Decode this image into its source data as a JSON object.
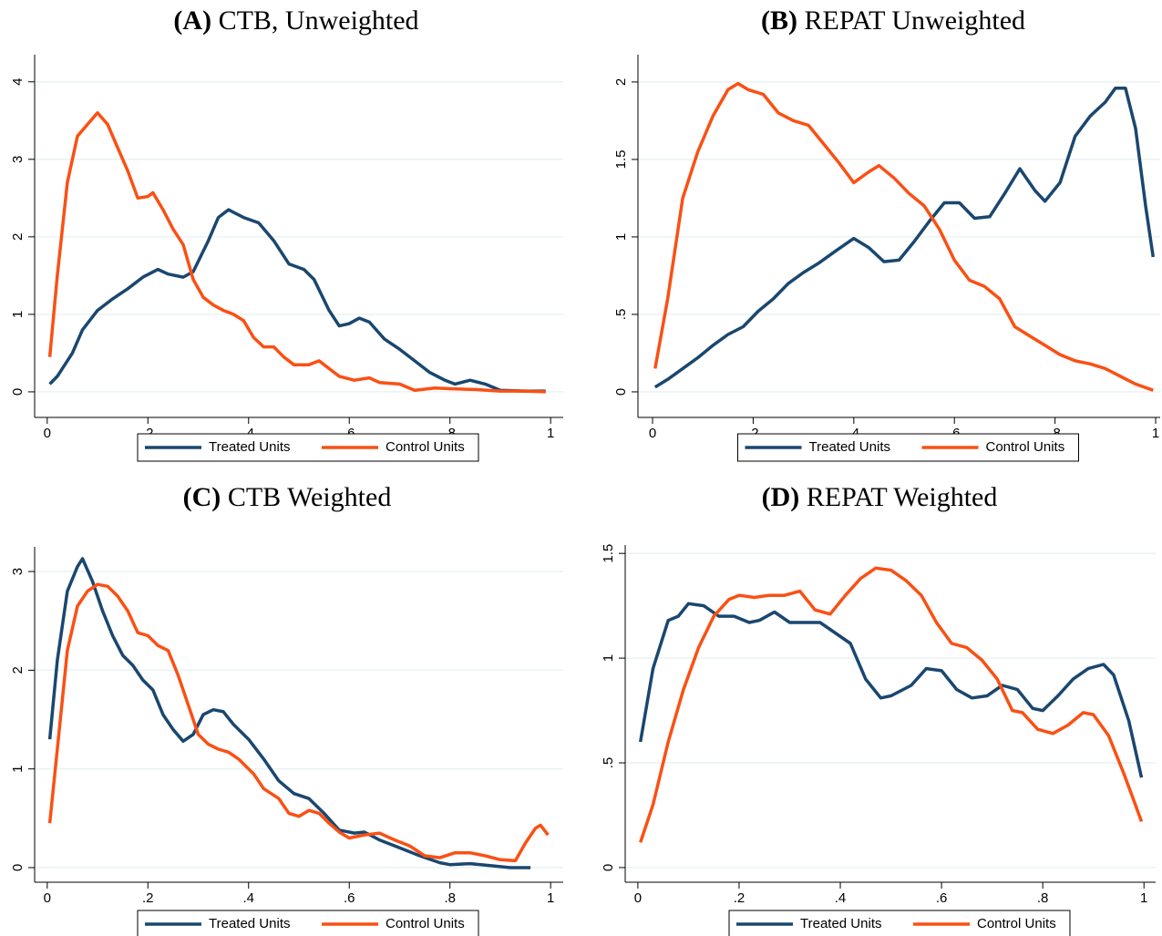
{
  "chart_data": [
    {
      "type": "line",
      "panel": "(A)",
      "title": "CTB, Unweighted",
      "grid": true,
      "legend": "bottom",
      "xlim": [
        -0.025,
        1.025
      ],
      "ylim": [
        -0.33,
        4.35
      ],
      "xticks": [
        0,
        {
          "value": 0.2,
          "label": ".2"
        },
        {
          "value": 0.4,
          "label": ".4"
        },
        {
          "value": 0.6,
          "label": ".6"
        },
        {
          "value": 0.8,
          "label": ".8"
        },
        1
      ],
      "yticks": [
        0,
        1,
        2,
        3,
        4
      ],
      "series": [
        {
          "name": "Treated Units",
          "color": "#1a476f",
          "x": [
            0.005,
            0.02,
            0.05,
            0.07,
            0.1,
            0.13,
            0.16,
            0.19,
            0.22,
            0.24,
            0.27,
            0.29,
            0.32,
            0.34,
            0.36,
            0.39,
            0.42,
            0.45,
            0.48,
            0.51,
            0.53,
            0.56,
            0.58,
            0.6,
            0.62,
            0.64,
            0.67,
            0.7,
            0.73,
            0.76,
            0.79,
            0.81,
            0.84,
            0.87,
            0.9,
            0.95,
            0.99
          ],
          "values": [
            0.1,
            0.2,
            0.5,
            0.8,
            1.05,
            1.2,
            1.33,
            1.48,
            1.58,
            1.52,
            1.48,
            1.55,
            1.95,
            2.25,
            2.35,
            2.25,
            2.18,
            1.95,
            1.65,
            1.58,
            1.45,
            1.05,
            0.85,
            0.88,
            0.95,
            0.9,
            0.68,
            0.55,
            0.4,
            0.25,
            0.15,
            0.1,
            0.15,
            0.1,
            0.02,
            0.01,
            0.01
          ]
        },
        {
          "name": "Control Units",
          "color": "#fa5014",
          "x": [
            0.005,
            0.02,
            0.04,
            0.06,
            0.08,
            0.1,
            0.12,
            0.14,
            0.16,
            0.18,
            0.2,
            0.21,
            0.23,
            0.25,
            0.27,
            0.29,
            0.31,
            0.33,
            0.35,
            0.37,
            0.39,
            0.41,
            0.43,
            0.45,
            0.47,
            0.49,
            0.52,
            0.54,
            0.56,
            0.58,
            0.61,
            0.64,
            0.66,
            0.7,
            0.73,
            0.77,
            0.8,
            0.85,
            0.9,
            0.95,
            0.99
          ],
          "values": [
            0.45,
            1.5,
            2.7,
            3.3,
            3.45,
            3.6,
            3.45,
            3.15,
            2.85,
            2.5,
            2.52,
            2.57,
            2.35,
            2.1,
            1.9,
            1.45,
            1.22,
            1.12,
            1.05,
            1.0,
            0.92,
            0.7,
            0.58,
            0.58,
            0.45,
            0.35,
            0.35,
            0.4,
            0.3,
            0.2,
            0.15,
            0.18,
            0.12,
            0.1,
            0.02,
            0.05,
            0.04,
            0.03,
            0.01,
            0.01,
            0.0
          ]
        }
      ]
    },
    {
      "type": "line",
      "panel": "(B)",
      "title": "REPAT Unweighted",
      "grid": true,
      "legend": "bottom",
      "xlim": [
        -0.029,
        1.009
      ],
      "ylim": [
        -0.165,
        2.176
      ],
      "xticks": [
        0,
        {
          "value": 0.2,
          "label": ".2"
        },
        {
          "value": 0.4,
          "label": ".4"
        },
        {
          "value": 0.6,
          "label": ".6"
        },
        {
          "value": 0.8,
          "label": ".8"
        },
        1
      ],
      "yticks": [
        0,
        {
          "value": 0.5,
          "label": ".5"
        },
        1,
        1.5,
        2
      ],
      "series": [
        {
          "name": "Treated Units",
          "color": "#1a476f",
          "x": [
            0.005,
            0.03,
            0.06,
            0.09,
            0.12,
            0.15,
            0.18,
            0.21,
            0.24,
            0.27,
            0.3,
            0.33,
            0.36,
            0.4,
            0.43,
            0.46,
            0.49,
            0.52,
            0.55,
            0.58,
            0.61,
            0.64,
            0.67,
            0.7,
            0.73,
            0.76,
            0.78,
            0.81,
            0.84,
            0.87,
            0.9,
            0.92,
            0.94,
            0.96,
            0.98,
            0.995
          ],
          "values": [
            0.03,
            0.08,
            0.15,
            0.22,
            0.3,
            0.37,
            0.42,
            0.52,
            0.6,
            0.7,
            0.77,
            0.83,
            0.9,
            0.99,
            0.93,
            0.84,
            0.85,
            0.97,
            1.1,
            1.22,
            1.22,
            1.12,
            1.13,
            1.28,
            1.44,
            1.3,
            1.23,
            1.35,
            1.65,
            1.78,
            1.87,
            1.96,
            1.96,
            1.7,
            1.2,
            0.87
          ]
        },
        {
          "name": "Control Units",
          "color": "#fa5014",
          "x": [
            0.005,
            0.03,
            0.06,
            0.09,
            0.12,
            0.15,
            0.17,
            0.19,
            0.22,
            0.25,
            0.28,
            0.31,
            0.34,
            0.37,
            0.4,
            0.43,
            0.45,
            0.48,
            0.51,
            0.54,
            0.57,
            0.6,
            0.63,
            0.66,
            0.69,
            0.72,
            0.75,
            0.78,
            0.81,
            0.84,
            0.87,
            0.9,
            0.93,
            0.96,
            0.995
          ],
          "values": [
            0.15,
            0.6,
            1.25,
            1.55,
            1.78,
            1.95,
            1.99,
            1.95,
            1.92,
            1.8,
            1.75,
            1.72,
            1.6,
            1.48,
            1.35,
            1.42,
            1.46,
            1.38,
            1.28,
            1.2,
            1.05,
            0.85,
            0.72,
            0.68,
            0.6,
            0.42,
            0.36,
            0.3,
            0.24,
            0.2,
            0.18,
            0.15,
            0.1,
            0.05,
            0.01
          ]
        }
      ]
    },
    {
      "type": "line",
      "panel": "(C)",
      "title": "CTB Weighted",
      "grid": true,
      "legend": "bottom",
      "xlim": [
        -0.025,
        1.025
      ],
      "ylim": [
        -0.148,
        3.25
      ],
      "xticks": [
        0,
        {
          "value": 0.2,
          "label": ".2"
        },
        {
          "value": 0.4,
          "label": ".4"
        },
        {
          "value": 0.6,
          "label": ".6"
        },
        {
          "value": 0.8,
          "label": ".8"
        },
        1
      ],
      "yticks": [
        0,
        1,
        2,
        3
      ],
      "series": [
        {
          "name": "Treated Units",
          "color": "#1a476f",
          "x": [
            0.005,
            0.02,
            0.04,
            0.06,
            0.07,
            0.09,
            0.11,
            0.13,
            0.15,
            0.17,
            0.19,
            0.21,
            0.23,
            0.25,
            0.27,
            0.29,
            0.31,
            0.33,
            0.35,
            0.37,
            0.4,
            0.43,
            0.46,
            0.49,
            0.52,
            0.55,
            0.58,
            0.61,
            0.63,
            0.66,
            0.7,
            0.74,
            0.78,
            0.8,
            0.84,
            0.88,
            0.92,
            0.96
          ],
          "values": [
            1.3,
            2.1,
            2.8,
            3.05,
            3.13,
            2.9,
            2.6,
            2.35,
            2.15,
            2.05,
            1.9,
            1.8,
            1.55,
            1.4,
            1.28,
            1.35,
            1.55,
            1.6,
            1.58,
            1.45,
            1.3,
            1.1,
            0.88,
            0.75,
            0.7,
            0.55,
            0.38,
            0.35,
            0.36,
            0.28,
            0.2,
            0.12,
            0.05,
            0.03,
            0.04,
            0.02,
            0.0,
            0.0
          ]
        },
        {
          "name": "Control Units",
          "color": "#fa5014",
          "x": [
            0.005,
            0.02,
            0.04,
            0.06,
            0.08,
            0.1,
            0.12,
            0.14,
            0.16,
            0.18,
            0.2,
            0.22,
            0.24,
            0.26,
            0.28,
            0.3,
            0.32,
            0.34,
            0.36,
            0.38,
            0.41,
            0.43,
            0.46,
            0.48,
            0.5,
            0.52,
            0.54,
            0.56,
            0.58,
            0.6,
            0.63,
            0.66,
            0.69,
            0.72,
            0.75,
            0.78,
            0.81,
            0.84,
            0.87,
            0.9,
            0.93,
            0.95,
            0.97,
            0.98,
            0.995
          ],
          "values": [
            0.45,
            1.2,
            2.2,
            2.65,
            2.8,
            2.87,
            2.85,
            2.75,
            2.6,
            2.38,
            2.35,
            2.25,
            2.2,
            1.95,
            1.65,
            1.35,
            1.25,
            1.2,
            1.17,
            1.1,
            0.95,
            0.8,
            0.7,
            0.55,
            0.52,
            0.58,
            0.55,
            0.45,
            0.36,
            0.3,
            0.33,
            0.35,
            0.28,
            0.22,
            0.12,
            0.1,
            0.15,
            0.15,
            0.12,
            0.08,
            0.07,
            0.25,
            0.4,
            0.43,
            0.33
          ]
        }
      ]
    },
    {
      "type": "line",
      "panel": "(D)",
      "title": "REPAT Weighted",
      "grid": true,
      "legend": "bottom",
      "xlim": [
        -0.025,
        1.023
      ],
      "ylim": [
        -0.07,
        1.54
      ],
      "xticks": [
        0,
        {
          "value": 0.2,
          "label": ".2"
        },
        {
          "value": 0.4,
          "label": ".4"
        },
        {
          "value": 0.6,
          "label": ".6"
        },
        {
          "value": 0.8,
          "label": ".8"
        },
        1
      ],
      "yticks": [
        0,
        {
          "value": 0.5,
          "label": ".5"
        },
        1,
        1.5
      ],
      "series": [
        {
          "name": "Treated Units",
          "color": "#1a476f",
          "x": [
            0.005,
            0.03,
            0.06,
            0.08,
            0.1,
            0.13,
            0.16,
            0.19,
            0.22,
            0.24,
            0.27,
            0.3,
            0.33,
            0.36,
            0.39,
            0.42,
            0.45,
            0.48,
            0.5,
            0.54,
            0.57,
            0.6,
            0.63,
            0.66,
            0.69,
            0.72,
            0.75,
            0.78,
            0.8,
            0.83,
            0.86,
            0.89,
            0.92,
            0.94,
            0.97,
            0.995
          ],
          "values": [
            0.6,
            0.95,
            1.18,
            1.2,
            1.26,
            1.25,
            1.2,
            1.2,
            1.17,
            1.18,
            1.22,
            1.17,
            1.17,
            1.17,
            1.12,
            1.07,
            0.9,
            0.81,
            0.82,
            0.87,
            0.95,
            0.94,
            0.85,
            0.81,
            0.82,
            0.87,
            0.85,
            0.76,
            0.75,
            0.82,
            0.9,
            0.95,
            0.97,
            0.92,
            0.7,
            0.43
          ]
        },
        {
          "name": "Control Units",
          "color": "#fa5014",
          "x": [
            0.005,
            0.03,
            0.06,
            0.09,
            0.12,
            0.15,
            0.18,
            0.2,
            0.23,
            0.26,
            0.29,
            0.32,
            0.35,
            0.38,
            0.41,
            0.44,
            0.47,
            0.5,
            0.53,
            0.56,
            0.59,
            0.62,
            0.65,
            0.68,
            0.71,
            0.74,
            0.76,
            0.79,
            0.82,
            0.85,
            0.88,
            0.9,
            0.93,
            0.96,
            0.98,
            0.995
          ],
          "values": [
            0.12,
            0.3,
            0.6,
            0.85,
            1.05,
            1.2,
            1.28,
            1.3,
            1.29,
            1.3,
            1.3,
            1.32,
            1.23,
            1.21,
            1.3,
            1.38,
            1.43,
            1.42,
            1.37,
            1.3,
            1.17,
            1.07,
            1.05,
            0.99,
            0.9,
            0.75,
            0.74,
            0.66,
            0.64,
            0.68,
            0.74,
            0.73,
            0.63,
            0.45,
            0.32,
            0.22
          ]
        }
      ]
    }
  ]
}
